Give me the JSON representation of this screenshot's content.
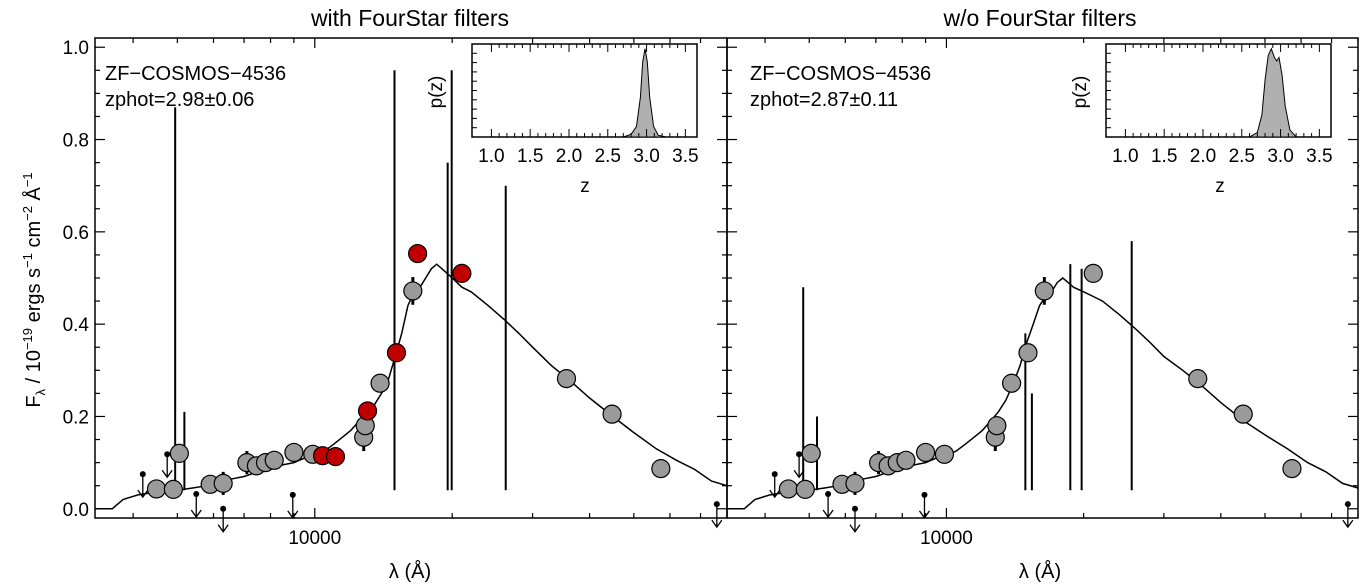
{
  "figure": {
    "ylabel_parts": [
      "F",
      "λ",
      " / 10",
      "−19",
      " ergs s",
      "−1",
      " cm",
      "−2",
      " Å",
      "−1"
    ]
  },
  "chart_data": [
    {
      "type": "scatter",
      "title": "with FourStar filters",
      "xlabel": "λ (Å)",
      "ylabel": "Fλ / 10^-19 ergs s^-1 cm^-2 Å^-1",
      "xscale": "log",
      "xlim": [
        3300,
        80000
      ],
      "ylim": [
        -0.02,
        1.02
      ],
      "xticks": [
        10000
      ],
      "xtick_labels": [
        "10000"
      ],
      "yticks": [
        0.0,
        0.2,
        0.4,
        0.6,
        0.8,
        1.0
      ],
      "ytick_labels": [
        "0.0",
        "0.2",
        "0.4",
        "0.6",
        "0.8",
        "1.0"
      ],
      "annotation": [
        "ZF−COSMOS−4536",
        "zphot=2.98±0.06"
      ],
      "colors": {
        "broadband": "#9a9a9a",
        "fourstar": "#c00000",
        "outline": "#000000"
      },
      "points": [
        {
          "x": 4500,
          "y": 0.043,
          "err": 0.0
        },
        {
          "x": 4900,
          "y": 0.042,
          "err": 0.015
        },
        {
          "x": 5050,
          "y": 0.12,
          "err": 0.0
        },
        {
          "x": 5900,
          "y": 0.053,
          "err": 0.0
        },
        {
          "x": 6300,
          "y": 0.055,
          "err": 0.025
        },
        {
          "x": 7100,
          "y": 0.1,
          "err": 0.025
        },
        {
          "x": 7450,
          "y": 0.093,
          "err": 0.0
        },
        {
          "x": 7800,
          "y": 0.1,
          "err": 0.015
        },
        {
          "x": 8150,
          "y": 0.105,
          "err": 0.0
        },
        {
          "x": 9000,
          "y": 0.122,
          "err": 0.02
        },
        {
          "x": 9900,
          "y": 0.118,
          "err": 0.012
        },
        {
          "x": 12800,
          "y": 0.155,
          "err": 0.03
        },
        {
          "x": 12900,
          "y": 0.18,
          "err": 0.02
        },
        {
          "x": 13900,
          "y": 0.272,
          "err": 0.0
        },
        {
          "x": 16400,
          "y": 0.472,
          "err": 0.03
        },
        {
          "x": 35600,
          "y": 0.282,
          "err": 0.0
        },
        {
          "x": 44800,
          "y": 0.205,
          "err": 0.0
        },
        {
          "x": 57300,
          "y": 0.087,
          "err": 0.02
        }
      ],
      "fourstar_points": [
        {
          "x": 10400,
          "y": 0.115,
          "err": 0.015
        },
        {
          "x": 11100,
          "y": 0.113,
          "err": 0.0
        },
        {
          "x": 13050,
          "y": 0.212,
          "err": 0.0
        },
        {
          "x": 15100,
          "y": 0.338,
          "err": 0.0
        },
        {
          "x": 16800,
          "y": 0.553,
          "err": 0.0
        },
        {
          "x": 21000,
          "y": 0.51,
          "err": 0.0
        }
      ],
      "upper_limits": [
        {
          "x": 4200,
          "y": 0.075
        },
        {
          "x": 4750,
          "y": 0.118
        },
        {
          "x": 5500,
          "y": 0.032
        },
        {
          "x": 6300,
          "y": 0.0
        },
        {
          "x": 8950,
          "y": 0.03
        },
        {
          "x": 76000,
          "y": 0.01
        }
      ],
      "emission_lines": [
        {
          "x": 4945,
          "y": 0.87
        },
        {
          "x": 5180,
          "y": 0.21
        },
        {
          "x": 14950,
          "y": 0.95
        },
        {
          "x": 19550,
          "y": 0.75
        },
        {
          "x": 19950,
          "y": 0.95
        },
        {
          "x": 26200,
          "y": 0.7
        }
      ],
      "model_sed": [
        [
          3300,
          0.0
        ],
        [
          3600,
          0.0
        ],
        [
          3800,
          0.02
        ],
        [
          4100,
          0.03
        ],
        [
          4400,
          0.035
        ],
        [
          4700,
          0.038
        ],
        [
          5000,
          0.04
        ],
        [
          5400,
          0.045
        ],
        [
          5800,
          0.05
        ],
        [
          6200,
          0.058
        ],
        [
          6600,
          0.065
        ],
        [
          7000,
          0.07
        ],
        [
          7500,
          0.08
        ],
        [
          8000,
          0.088
        ],
        [
          8500,
          0.095
        ],
        [
          9000,
          0.1
        ],
        [
          9500,
          0.11
        ],
        [
          10000,
          0.115
        ],
        [
          10500,
          0.125
        ],
        [
          11000,
          0.14
        ],
        [
          11500,
          0.155
        ],
        [
          12000,
          0.17
        ],
        [
          12500,
          0.19
        ],
        [
          13000,
          0.205
        ],
        [
          13500,
          0.225
        ],
        [
          14000,
          0.25
        ],
        [
          14500,
          0.28
        ],
        [
          15000,
          0.33
        ],
        [
          15500,
          0.38
        ],
        [
          16000,
          0.44
        ],
        [
          16500,
          0.47
        ],
        [
          17000,
          0.48
        ],
        [
          17500,
          0.5
        ],
        [
          18000,
          0.52
        ],
        [
          18500,
          0.53
        ],
        [
          19000,
          0.52
        ],
        [
          20000,
          0.5
        ],
        [
          21000,
          0.48
        ],
        [
          22000,
          0.47
        ],
        [
          24000,
          0.44
        ],
        [
          26000,
          0.41
        ],
        [
          28000,
          0.38
        ],
        [
          30000,
          0.35
        ],
        [
          33000,
          0.31
        ],
        [
          36000,
          0.28
        ],
        [
          40000,
          0.24
        ],
        [
          45000,
          0.2
        ],
        [
          50000,
          0.165
        ],
        [
          56000,
          0.13
        ],
        [
          62000,
          0.105
        ],
        [
          68000,
          0.085
        ],
        [
          74000,
          0.06
        ],
        [
          80000,
          0.05
        ]
      ],
      "inset": {
        "xlabel": "z",
        "ylabel": "p(z)",
        "xlim": [
          0.75,
          3.65
        ],
        "xticks": [
          1.0,
          1.5,
          2.0,
          2.5,
          3.0,
          3.5
        ],
        "xtick_labels": [
          "1.0",
          "1.5",
          "2.0",
          "2.5",
          "3.0",
          "3.5"
        ],
        "pdf_z": [
          2.7,
          2.8,
          2.87,
          2.92,
          2.95,
          2.98,
          3.01,
          3.04,
          3.09,
          3.15,
          3.25
        ],
        "pdf_p": [
          0.0,
          0.03,
          0.12,
          0.45,
          0.85,
          1.0,
          0.85,
          0.45,
          0.12,
          0.02,
          0.0
        ]
      }
    },
    {
      "type": "scatter",
      "title": "w/o FourStar filters",
      "xlabel": "λ (Å)",
      "xscale": "log",
      "xlim": [
        3300,
        80000
      ],
      "ylim": [
        -0.02,
        1.02
      ],
      "xticks": [
        10000
      ],
      "xtick_labels": [
        "10000"
      ],
      "annotation": [
        "ZF−COSMOS−4536",
        "zphot=2.87±0.11"
      ],
      "colors": {
        "broadband": "#9a9a9a",
        "outline": "#000000"
      },
      "points": [
        {
          "x": 4500,
          "y": 0.043,
          "err": 0.0
        },
        {
          "x": 4900,
          "y": 0.042,
          "err": 0.015
        },
        {
          "x": 5050,
          "y": 0.12,
          "err": 0.0
        },
        {
          "x": 5900,
          "y": 0.053,
          "err": 0.0
        },
        {
          "x": 6300,
          "y": 0.055,
          "err": 0.025
        },
        {
          "x": 7100,
          "y": 0.1,
          "err": 0.025
        },
        {
          "x": 7450,
          "y": 0.093,
          "err": 0.0
        },
        {
          "x": 7800,
          "y": 0.1,
          "err": 0.015
        },
        {
          "x": 8150,
          "y": 0.105,
          "err": 0.0
        },
        {
          "x": 9000,
          "y": 0.122,
          "err": 0.02
        },
        {
          "x": 9900,
          "y": 0.118,
          "err": 0.012
        },
        {
          "x": 12800,
          "y": 0.155,
          "err": 0.03
        },
        {
          "x": 12900,
          "y": 0.18,
          "err": 0.02
        },
        {
          "x": 13900,
          "y": 0.272,
          "err": 0.0
        },
        {
          "x": 15100,
          "y": 0.338,
          "err": 0.0
        },
        {
          "x": 16400,
          "y": 0.472,
          "err": 0.03
        },
        {
          "x": 21000,
          "y": 0.51,
          "err": 0.0
        },
        {
          "x": 35600,
          "y": 0.282,
          "err": 0.0
        },
        {
          "x": 44800,
          "y": 0.205,
          "err": 0.0
        },
        {
          "x": 57300,
          "y": 0.087,
          "err": 0.02
        }
      ],
      "upper_limits": [
        {
          "x": 4200,
          "y": 0.075
        },
        {
          "x": 4750,
          "y": 0.118
        },
        {
          "x": 5500,
          "y": 0.032
        },
        {
          "x": 6300,
          "y": 0.0
        },
        {
          "x": 8950,
          "y": 0.03
        },
        {
          "x": 76000,
          "y": 0.01
        }
      ],
      "emission_lines": [
        {
          "x": 4850,
          "y": 0.48
        },
        {
          "x": 5200,
          "y": 0.2
        },
        {
          "x": 14900,
          "y": 0.38
        },
        {
          "x": 15400,
          "y": 0.25
        },
        {
          "x": 18700,
          "y": 0.53
        },
        {
          "x": 19800,
          "y": 0.52
        },
        {
          "x": 25500,
          "y": 0.58
        }
      ],
      "model_sed": [
        [
          3300,
          0.0
        ],
        [
          3600,
          0.0
        ],
        [
          3800,
          0.02
        ],
        [
          4100,
          0.03
        ],
        [
          4400,
          0.035
        ],
        [
          4700,
          0.038
        ],
        [
          5000,
          0.04
        ],
        [
          5400,
          0.045
        ],
        [
          5800,
          0.05
        ],
        [
          6200,
          0.058
        ],
        [
          6600,
          0.065
        ],
        [
          7000,
          0.07
        ],
        [
          7500,
          0.08
        ],
        [
          8000,
          0.088
        ],
        [
          8500,
          0.095
        ],
        [
          9000,
          0.1
        ],
        [
          9500,
          0.11
        ],
        [
          10000,
          0.115
        ],
        [
          10500,
          0.125
        ],
        [
          11000,
          0.14
        ],
        [
          11500,
          0.155
        ],
        [
          12000,
          0.17
        ],
        [
          12500,
          0.19
        ],
        [
          13000,
          0.21
        ],
        [
          13500,
          0.235
        ],
        [
          14000,
          0.27
        ],
        [
          14500,
          0.31
        ],
        [
          15000,
          0.36
        ],
        [
          15500,
          0.4
        ],
        [
          16000,
          0.44
        ],
        [
          16500,
          0.46
        ],
        [
          17000,
          0.47
        ],
        [
          17500,
          0.49
        ],
        [
          18000,
          0.5
        ],
        [
          18500,
          0.49
        ],
        [
          19000,
          0.48
        ],
        [
          20000,
          0.47
        ],
        [
          21000,
          0.46
        ],
        [
          22000,
          0.45
        ],
        [
          24000,
          0.42
        ],
        [
          26000,
          0.39
        ],
        [
          28000,
          0.36
        ],
        [
          30000,
          0.33
        ],
        [
          33000,
          0.3
        ],
        [
          36000,
          0.27
        ],
        [
          40000,
          0.23
        ],
        [
          45000,
          0.19
        ],
        [
          50000,
          0.16
        ],
        [
          56000,
          0.13
        ],
        [
          62000,
          0.1
        ],
        [
          68000,
          0.08
        ],
        [
          74000,
          0.055
        ],
        [
          80000,
          0.045
        ]
      ],
      "inset": {
        "xlabel": "z",
        "ylabel": "p(z)",
        "xlim": [
          0.75,
          3.65
        ],
        "xticks": [
          1.0,
          1.5,
          2.0,
          2.5,
          3.0,
          3.5
        ],
        "xtick_labels": [
          "1.0",
          "1.5",
          "2.0",
          "2.5",
          "3.0",
          "3.5"
        ],
        "pdf_z": [
          2.6,
          2.7,
          2.76,
          2.8,
          2.84,
          2.88,
          2.92,
          2.95,
          2.98,
          3.02,
          3.06,
          3.12,
          3.2
        ],
        "pdf_p": [
          0.0,
          0.05,
          0.25,
          0.65,
          0.92,
          1.0,
          0.9,
          0.86,
          0.9,
          0.7,
          0.35,
          0.08,
          0.0
        ]
      }
    }
  ]
}
